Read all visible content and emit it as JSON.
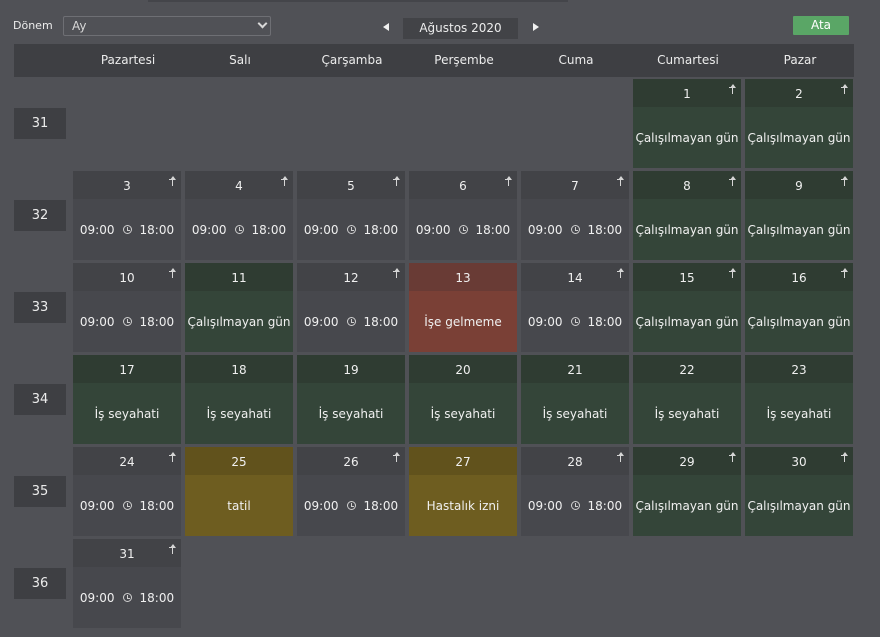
{
  "toolbar": {
    "period_label": "Dönem",
    "period_value": "Ay",
    "month_label": "Ağustos 2020",
    "assign_label": "Ata"
  },
  "weekdays": [
    "Pazartesi",
    "Salı",
    "Çarşamba",
    "Perşembe",
    "Cuma",
    "Cumartesi",
    "Pazar"
  ],
  "weeks": [
    {
      "number": "31",
      "days": [
        null,
        null,
        null,
        null,
        null,
        {
          "day": "1",
          "type": "off",
          "label": "Çalışılmayan gün",
          "share": true
        },
        {
          "day": "2",
          "type": "off",
          "label": "Çalışılmayan gün",
          "share": true
        }
      ]
    },
    {
      "number": "32",
      "days": [
        {
          "day": "3",
          "type": "work",
          "start": "09:00",
          "end": "18:00",
          "share": true
        },
        {
          "day": "4",
          "type": "work",
          "start": "09:00",
          "end": "18:00",
          "share": true
        },
        {
          "day": "5",
          "type": "work",
          "start": "09:00",
          "end": "18:00",
          "share": true
        },
        {
          "day": "6",
          "type": "work",
          "start": "09:00",
          "end": "18:00",
          "share": true
        },
        {
          "day": "7",
          "type": "work",
          "start": "09:00",
          "end": "18:00",
          "share": true
        },
        {
          "day": "8",
          "type": "off",
          "label": "Çalışılmayan gün",
          "share": true
        },
        {
          "day": "9",
          "type": "off",
          "label": "Çalışılmayan gün",
          "share": true
        }
      ]
    },
    {
      "number": "33",
      "days": [
        {
          "day": "10",
          "type": "work",
          "start": "09:00",
          "end": "18:00",
          "share": true
        },
        {
          "day": "11",
          "type": "off",
          "label": "Çalışılmayan gün",
          "share": false
        },
        {
          "day": "12",
          "type": "work",
          "start": "09:00",
          "end": "18:00",
          "share": true
        },
        {
          "day": "13",
          "type": "absent",
          "label": "İşe gelmeme",
          "share": false
        },
        {
          "day": "14",
          "type": "work",
          "start": "09:00",
          "end": "18:00",
          "share": true
        },
        {
          "day": "15",
          "type": "off",
          "label": "Çalışılmayan gün",
          "share": true
        },
        {
          "day": "16",
          "type": "off",
          "label": "Çalışılmayan gün",
          "share": true
        }
      ]
    },
    {
      "number": "34",
      "days": [
        {
          "day": "17",
          "type": "off",
          "label": "İş seyahati",
          "share": false
        },
        {
          "day": "18",
          "type": "off",
          "label": "İş seyahati",
          "share": false
        },
        {
          "day": "19",
          "type": "off",
          "label": "İş seyahati",
          "share": false
        },
        {
          "day": "20",
          "type": "off",
          "label": "İş seyahati",
          "share": false
        },
        {
          "day": "21",
          "type": "off",
          "label": "İş seyahati",
          "share": false
        },
        {
          "day": "22",
          "type": "off",
          "label": "İş seyahati",
          "share": false
        },
        {
          "day": "23",
          "type": "off",
          "label": "İş seyahati",
          "share": false
        }
      ]
    },
    {
      "number": "35",
      "days": [
        {
          "day": "24",
          "type": "work",
          "start": "09:00",
          "end": "18:00",
          "share": true
        },
        {
          "day": "25",
          "type": "leave",
          "label": "tatil",
          "share": false
        },
        {
          "day": "26",
          "type": "work",
          "start": "09:00",
          "end": "18:00",
          "share": true
        },
        {
          "day": "27",
          "type": "leave",
          "label": "Hastalık izni",
          "share": false
        },
        {
          "day": "28",
          "type": "work",
          "start": "09:00",
          "end": "18:00",
          "share": true
        },
        {
          "day": "29",
          "type": "off",
          "label": "Çalışılmayan gün",
          "share": true
        },
        {
          "day": "30",
          "type": "off",
          "label": "Çalışılmayan gün",
          "share": true
        }
      ]
    },
    {
      "number": "36",
      "days": [
        {
          "day": "31",
          "type": "work",
          "start": "09:00",
          "end": "18:00",
          "share": true
        },
        null,
        null,
        null,
        null,
        null,
        null
      ]
    }
  ]
}
